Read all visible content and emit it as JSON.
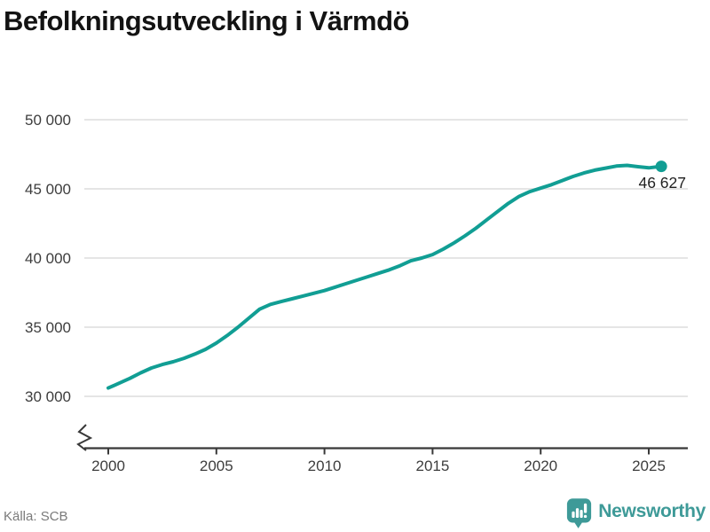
{
  "title": "Befolkningsutveckling i Värmdö",
  "source": {
    "label": "Källa: SCB"
  },
  "brand": {
    "name": "Newsworthy",
    "icon": "newsworthy-pin-barchart-icon",
    "color": "#3E9A98"
  },
  "colors": {
    "line": "#119e94",
    "grid": "#e5e5e5",
    "axis": "#383838",
    "tick_label": "#3d3d3d",
    "end_label": "#1f1f1f"
  },
  "chart_data": {
    "type": "line",
    "title": "Befolkningsutveckling i Värmdö",
    "xlabel": "",
    "ylabel": "",
    "grid": "horizontal",
    "axis_break": true,
    "xlim": [
      2000,
      2025.7
    ],
    "ylim": [
      30000,
      50000
    ],
    "x_ticks": [
      2000,
      2005,
      2010,
      2015,
      2020,
      2025
    ],
    "y_ticks_labels": [
      "30 000",
      "35 000",
      "40 000",
      "45 000",
      "50 000"
    ],
    "y_tick_values": [
      30000,
      35000,
      40000,
      45000,
      50000
    ],
    "end_label": "46 627",
    "end_value": 46627,
    "series": [
      {
        "name": "Befolkning",
        "x": [
          2000,
          2000.5,
          2001,
          2001.5,
          2002,
          2002.5,
          2003,
          2003.5,
          2004,
          2004.5,
          2005,
          2005.5,
          2006,
          2006.5,
          2007,
          2007.5,
          2008,
          2008.5,
          2009,
          2009.5,
          2010,
          2010.5,
          2011,
          2011.5,
          2012,
          2012.5,
          2013,
          2013.5,
          2014,
          2014.5,
          2015,
          2015.5,
          2016,
          2016.5,
          2017,
          2017.5,
          2018,
          2018.5,
          2019,
          2019.5,
          2020,
          2020.5,
          2021,
          2021.5,
          2022,
          2022.5,
          2023,
          2023.5,
          2024,
          2024.5,
          2025,
          2025.58
        ],
        "values": [
          30600,
          30950,
          31300,
          31700,
          32050,
          32300,
          32500,
          32750,
          33050,
          33400,
          33850,
          34400,
          35000,
          35650,
          36300,
          36650,
          36850,
          37050,
          37250,
          37450,
          37650,
          37900,
          38150,
          38400,
          38650,
          38900,
          39150,
          39450,
          39800,
          40000,
          40250,
          40650,
          41100,
          41600,
          42150,
          42750,
          43350,
          43950,
          44450,
          44800,
          45050,
          45300,
          45600,
          45900,
          46150,
          46350,
          46500,
          46650,
          46700,
          46600,
          46520,
          46627
        ]
      }
    ]
  }
}
